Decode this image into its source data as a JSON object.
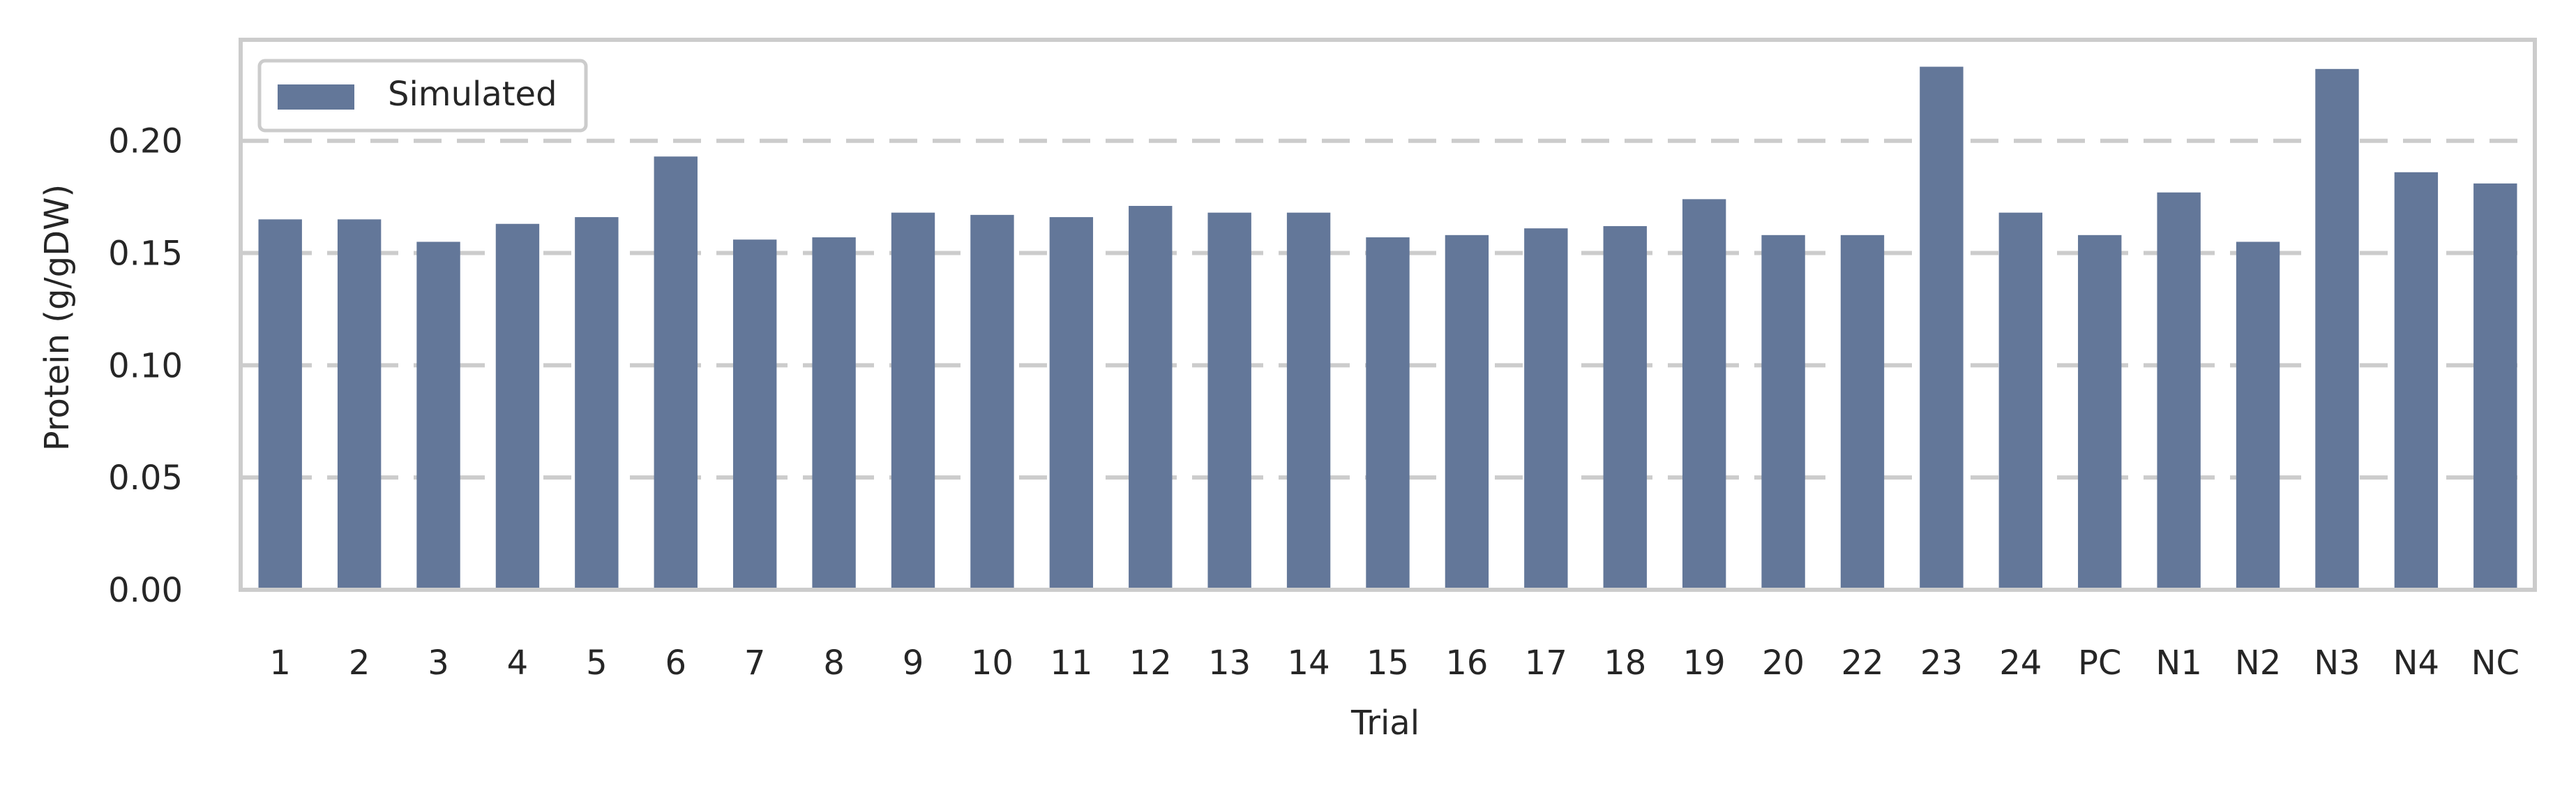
{
  "chart_data": {
    "type": "bar",
    "title": "",
    "xlabel": "Trial",
    "ylabel": "Protein (g/gDW)",
    "ylim": [
      0,
      0.245
    ],
    "yticks": [
      0.0,
      0.05,
      0.1,
      0.15,
      0.2
    ],
    "ytick_labels": [
      "0.00",
      "0.05",
      "0.10",
      "0.15",
      "0.20"
    ],
    "grid": "horizontal dashed",
    "legend_position": "top-left",
    "categories": [
      "1",
      "2",
      "3",
      "4",
      "5",
      "6",
      "7",
      "8",
      "9",
      "10",
      "11",
      "12",
      "13",
      "14",
      "15",
      "16",
      "17",
      "18",
      "19",
      "20",
      "22",
      "23",
      "24",
      "PC",
      "N1",
      "N2",
      "N3",
      "N4",
      "NC"
    ],
    "series": [
      {
        "name": "Simulated",
        "values": [
          0.165,
          0.165,
          0.155,
          0.163,
          0.166,
          0.193,
          0.156,
          0.157,
          0.168,
          0.167,
          0.166,
          0.171,
          0.168,
          0.168,
          0.157,
          0.158,
          0.161,
          0.162,
          0.174,
          0.158,
          0.158,
          0.233,
          0.168,
          0.158,
          0.177,
          0.155,
          0.232,
          0.186,
          0.181
        ]
      }
    ],
    "colors": {
      "bar": "#637799",
      "grid": "#cccccc",
      "frame": "#cccccc",
      "text": "#262626"
    }
  }
}
